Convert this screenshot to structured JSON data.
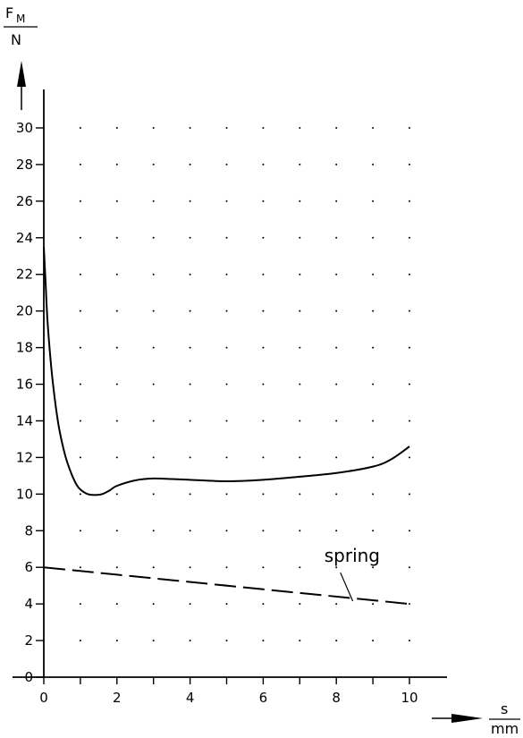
{
  "chart_data": {
    "type": "line",
    "title": "",
    "ylabel": {
      "symbol": "F",
      "subscript": "M",
      "unit": "N"
    },
    "xlabel": {
      "symbol": "s",
      "unit": "mm"
    },
    "xlim": [
      0,
      10
    ],
    "ylim": [
      0,
      30
    ],
    "x_ticks": [
      0,
      1,
      2,
      3,
      4,
      5,
      6,
      7,
      8,
      9,
      10
    ],
    "x_tick_labels": [
      "0",
      "2",
      "4",
      "6",
      "8",
      "10"
    ],
    "y_ticks": [
      0,
      2,
      4,
      6,
      8,
      10,
      12,
      14,
      16,
      18,
      20,
      22,
      24,
      26,
      28,
      30
    ],
    "y_tick_labels": [
      "0",
      "2",
      "4",
      "6",
      "8",
      "10",
      "12",
      "14",
      "16",
      "18",
      "20",
      "22",
      "24",
      "26",
      "28",
      "30"
    ],
    "grid": "dotted",
    "series": [
      {
        "style": "solid",
        "x": [
          0,
          0.05,
          0.1,
          0.2,
          0.3,
          0.4,
          0.5,
          0.6,
          0.7,
          0.8,
          0.9,
          1.0,
          1.2,
          1.4,
          1.6,
          1.8,
          2.0,
          2.5,
          3.0,
          3.5,
          4.0,
          5.0,
          6.0,
          7.0,
          8.0,
          9.0,
          9.5,
          10.0
        ],
        "y": [
          23.5,
          21.5,
          19.5,
          17.0,
          15.2,
          13.8,
          12.8,
          12.0,
          11.4,
          10.9,
          10.5,
          10.25,
          10.0,
          9.95,
          10.0,
          10.2,
          10.45,
          10.75,
          10.85,
          10.82,
          10.78,
          10.7,
          10.78,
          10.95,
          11.15,
          11.5,
          11.9,
          12.6
        ]
      },
      {
        "name": "spring",
        "style": "dashed",
        "x": [
          0,
          10
        ],
        "y": [
          6.0,
          4.0
        ]
      }
    ],
    "annotations": [
      {
        "text": "spring",
        "x": 8.6,
        "y": 6.3,
        "points_to": {
          "x": 8.45,
          "y": 4.3
        }
      }
    ]
  }
}
